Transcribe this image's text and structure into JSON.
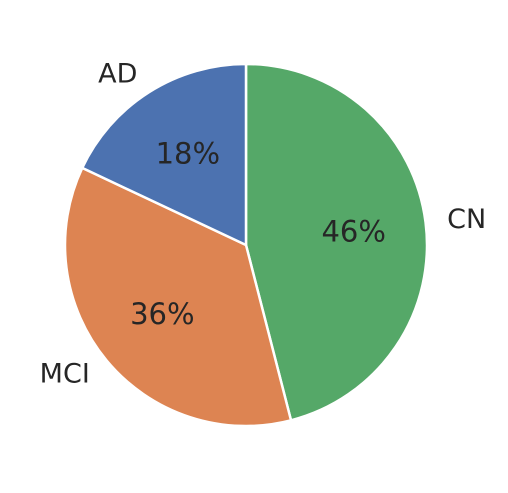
{
  "chart_data": {
    "type": "pie",
    "title": "",
    "start_angle_deg": 90,
    "direction": "clockwise",
    "slices": [
      {
        "label": "CN",
        "value": 46,
        "pct_label": "46%",
        "color": "#55a868"
      },
      {
        "label": "MCI",
        "value": 36,
        "pct_label": "36%",
        "color": "#dd8452"
      },
      {
        "label": "AD",
        "value": 18,
        "pct_label": "18%",
        "color": "#4c72b0"
      }
    ]
  }
}
